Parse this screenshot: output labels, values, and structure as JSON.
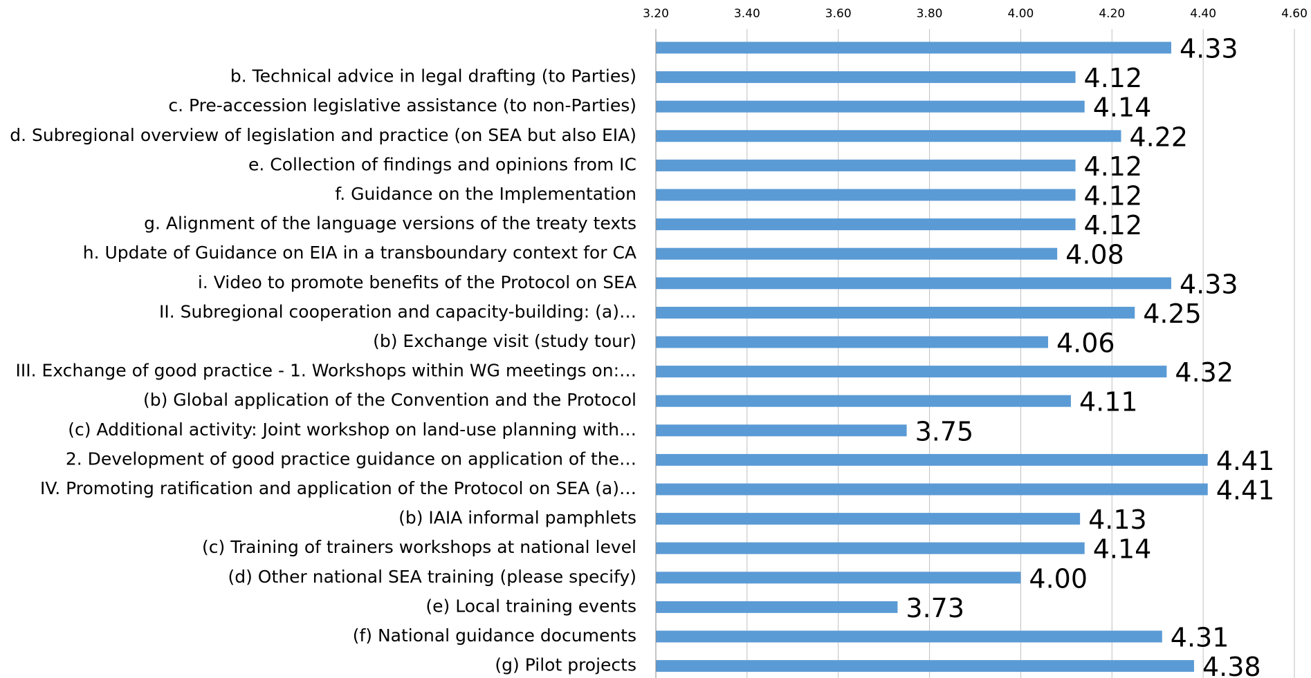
{
  "chart_data": {
    "type": "barh",
    "categories": [
      null,
      "b. Technical  advice in legal drafting (to Parties)",
      "c. Pre-accession legislative assistance (to non-Parties)",
      "d. Subregional overview of legislation and practice (on SEA  but also EIA)",
      "e. Collection of findings and opinions from IC",
      "f.  Guidance on the Implementation",
      "g. Alignment of the language versions of the treaty texts",
      "h. Update of Guidance on EIA in a transboundary context for CA",
      "i. Video to promote benefits of the Protocol on SEA",
      "II. Subregional cooperation and capacity-building: (a)…",
      "(b) Exchange visit (study tour)",
      "III. Exchange of good practice - 1. Workshops within WG meetings on:…",
      "(b) Global application of the Convention and the Protocol",
      "(c) Additional activity:  Joint workshop on land-use planning with…",
      "2. Development of good practice guidance on application of the…",
      "IV. Promoting ratification and application of the Protocol on SEA (a)…",
      "(b) IAIA informal pamphlets",
      "(c) Training of trainers workshops at national level",
      "(d) Other national SEA training (please specify)",
      "(e) Local training events",
      "(f) National guidance documents",
      "(g) Pilot projects"
    ],
    "values": [
      4.33,
      4.12,
      4.14,
      4.22,
      4.12,
      4.12,
      4.12,
      4.08,
      4.33,
      4.25,
      4.06,
      4.32,
      4.11,
      3.75,
      4.41,
      4.41,
      4.13,
      4.14,
      4.0,
      3.73,
      4.31,
      4.38
    ],
    "value_labels": [
      "4.33",
      "4.12",
      "4.14",
      "4.22",
      "4.12",
      "4.12",
      "4.12",
      "4.08",
      "4.33",
      "4.25",
      "4.06",
      "4.32",
      "4.11",
      "3.75",
      "4.41",
      "4.41",
      "4.13",
      "4.14",
      "4.00",
      "3.73",
      "4.31",
      "4.38"
    ],
    "color": "#5b9bd5",
    "xlim": [
      3.2,
      4.6
    ],
    "xticks": [
      {
        "value": 3.2,
        "label": "3.20"
      },
      {
        "value": 3.4,
        "label": "3.40"
      },
      {
        "value": 3.6,
        "label": "3.60"
      },
      {
        "value": 3.8,
        "label": "3.80"
      },
      {
        "value": 4.0,
        "label": "4.00"
      },
      {
        "value": 4.2,
        "label": "4.20"
      },
      {
        "value": 4.4,
        "label": "4.40"
      },
      {
        "value": 4.6,
        "label": "4.60"
      }
    ],
    "grid": true
  }
}
